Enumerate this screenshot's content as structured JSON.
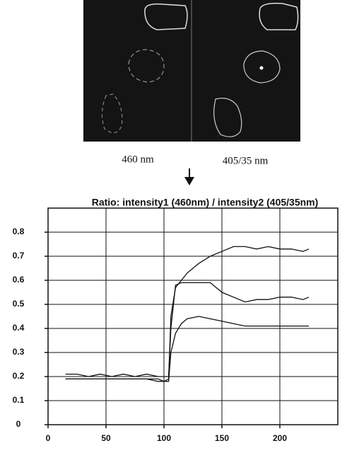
{
  "figure": {
    "panels": [
      {
        "label": "460 nm"
      },
      {
        "label": "405/35 nm"
      }
    ]
  },
  "chart_data": {
    "type": "line",
    "title": "Ratio: intensity1 (460nm) / intensity2 (405/35nm)",
    "x": [
      15,
      25,
      35,
      45,
      55,
      65,
      75,
      85,
      95,
      100,
      104,
      106,
      110,
      115,
      120,
      130,
      140,
      150,
      160,
      170,
      180,
      190,
      200,
      210,
      220,
      225
    ],
    "series": [
      {
        "color": "#111111",
        "values": [
          0.19,
          0.19,
          0.19,
          0.19,
          0.19,
          0.19,
          0.19,
          0.19,
          0.18,
          0.18,
          0.19,
          0.45,
          0.57,
          0.6,
          0.63,
          0.67,
          0.7,
          0.72,
          0.74,
          0.74,
          0.73,
          0.74,
          0.73,
          0.73,
          0.72,
          0.73
        ]
      },
      {
        "color": "#111111",
        "values": [
          0.21,
          0.21,
          0.2,
          0.21,
          0.2,
          0.21,
          0.2,
          0.21,
          0.2,
          0.2,
          0.2,
          0.4,
          0.58,
          0.59,
          0.59,
          0.59,
          0.59,
          0.55,
          0.53,
          0.51,
          0.52,
          0.52,
          0.53,
          0.53,
          0.52,
          0.53
        ]
      },
      {
        "color": "#111111",
        "values": [
          0.19,
          0.19,
          0.19,
          0.19,
          0.19,
          0.19,
          0.19,
          0.19,
          0.19,
          0.18,
          0.18,
          0.3,
          0.38,
          0.42,
          0.44,
          0.45,
          0.44,
          0.43,
          0.42,
          0.41,
          0.41,
          0.41,
          0.41,
          0.41,
          0.41,
          0.41
        ]
      }
    ],
    "xlim": [
      0,
      250
    ],
    "xticks": [
      0,
      50,
      100,
      150,
      200
    ],
    "ylim": [
      0,
      0.9
    ],
    "yticks": [
      0,
      0.1,
      0.2,
      0.3,
      0.4,
      0.5,
      0.6,
      0.7,
      0.8
    ],
    "grid": true
  }
}
